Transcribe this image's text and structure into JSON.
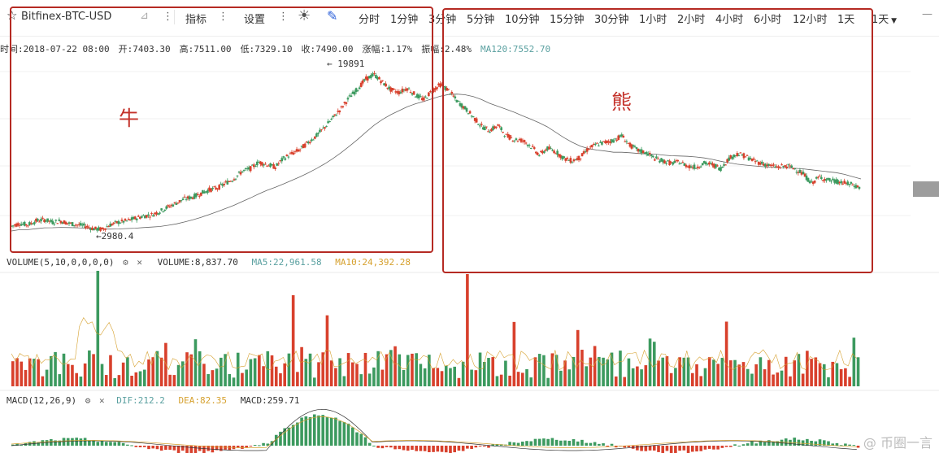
{
  "toolbar": {
    "symbol": "Bitfinex-BTC-USD",
    "indicators_label": "指标",
    "settings_label": "设置",
    "intervals": [
      "分时",
      "1分钟",
      "3分钟",
      "5分钟",
      "10分钟",
      "15分钟",
      "30分钟",
      "1小时",
      "2小时",
      "4小时",
      "6小时",
      "12小时",
      "1天",
      "1天"
    ]
  },
  "info": {
    "time": "时间:2018-07-22 08:00",
    "open": "开:7403.30",
    "high": "高:7511.00",
    "low": "低:7329.10",
    "close": "收:7490.00",
    "change": "涨幅:1.17%",
    "amplitude": "振幅:2.48%",
    "ma120": "MA120:7552.70"
  },
  "annotations": {
    "bull": "牛",
    "bear": "熊",
    "high_marker": "← 19891",
    "low_marker": "←2980.4"
  },
  "volume_panel": {
    "label": "VOLUME(5,10,0,0,0,0)",
    "volume": "VOLUME:8,837.70",
    "ma5": "MA5:22,961.58",
    "ma10": "MA10:24,392.28"
  },
  "macd_panel": {
    "label": "MACD(12,26,9)",
    "dif": "DIF:212.2",
    "dea": "DEA:82.35",
    "macd": "MACD:259.71"
  },
  "watermark": "@ 币圈一言",
  "colors": {
    "up": "#3c9a5f",
    "down": "#d8402c",
    "ma": "#666666",
    "box": "#b52a23"
  },
  "chart_data": {
    "type": "candlestick",
    "title": "Bitfinex-BTC-USD",
    "price_trend": {
      "x": [
        0,
        10,
        20,
        30,
        40,
        50,
        60,
        70,
        80,
        90,
        100,
        110,
        120,
        130,
        140,
        150,
        160,
        170,
        180,
        190,
        200,
        210,
        220,
        230,
        240,
        250,
        260,
        270,
        280,
        290,
        300,
        310,
        320,
        330,
        340,
        350,
        360,
        370,
        380,
        390,
        400,
        410,
        420,
        430,
        440,
        450,
        460,
        470,
        480,
        490,
        500,
        510,
        520,
        530,
        540,
        550,
        560,
        570,
        580,
        590,
        600,
        610,
        620,
        630,
        640,
        650,
        660,
        670,
        680,
        690,
        700,
        710,
        720,
        730,
        740,
        750,
        760,
        770,
        780,
        790,
        800,
        810,
        820,
        830,
        840,
        850,
        860,
        870,
        880,
        890,
        900,
        910,
        920,
        930,
        940,
        950,
        960,
        970,
        980,
        990,
        1000,
        1010,
        1020,
        1030
      ],
      "close": [
        3100,
        3200,
        3150,
        3300,
        3350,
        3250,
        3300,
        3200,
        3150,
        3100,
        3000,
        2980,
        3150,
        3250,
        3300,
        3400,
        3500,
        3550,
        3700,
        3900,
        4100,
        4300,
        4400,
        4600,
        4800,
        4900,
        5200,
        5500,
        6000,
        6200,
        6700,
        6500,
        6300,
        7000,
        7400,
        7800,
        8500,
        9200,
        10200,
        11400,
        12800,
        14600,
        16200,
        18200,
        19200,
        17500,
        16000,
        15500,
        16300,
        15000,
        14200,
        15800,
        17000,
        15900,
        14000,
        12800,
        11500,
        10300,
        9800,
        10400,
        9200,
        8800,
        8700,
        8100,
        7300,
        7900,
        7600,
        7000,
        6800,
        7100,
        7900,
        8300,
        8500,
        8700,
        9200,
        8200,
        7700,
        7500,
        7000,
        6800,
        6600,
        6700,
        6400,
        6300,
        6600,
        6500,
        6200,
        7000,
        7400,
        7200,
        6800,
        6600,
        6400,
        6300,
        6400,
        6200,
        5800,
        5200,
        5600,
        5400,
        5300,
        5200,
        5100,
        4900
      ]
    },
    "ma120_series": "smoothed",
    "max_label": 19891,
    "min_label": 2980.4,
    "volume": {
      "type": "bar",
      "count": 200
    },
    "macd": {
      "type": "bar",
      "count": 200
    }
  }
}
